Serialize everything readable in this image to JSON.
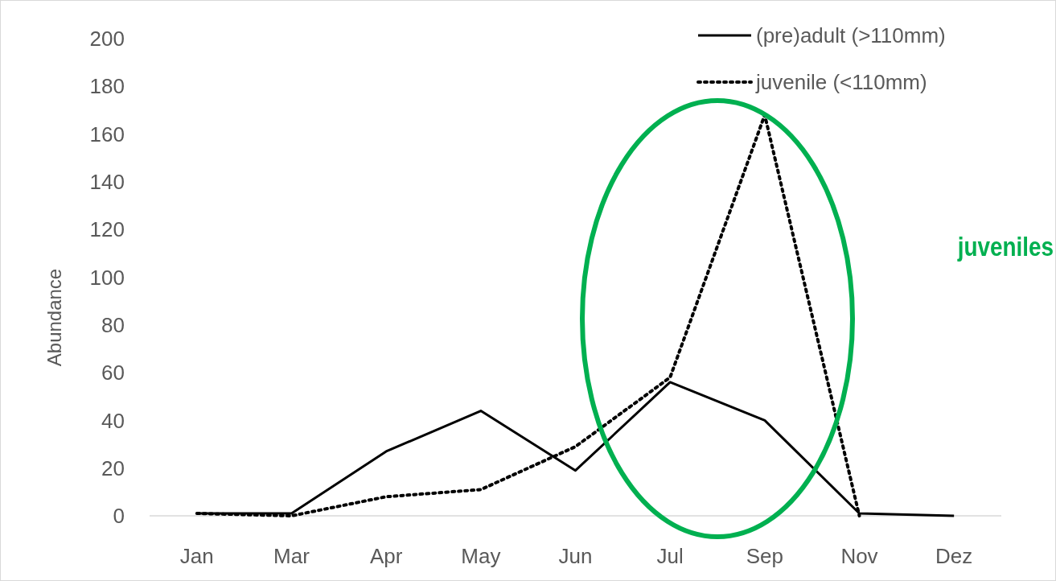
{
  "chart_data": {
    "type": "line",
    "ylabel": "Abundance",
    "categories": [
      "Jan",
      "Mar",
      "Apr",
      "May",
      "Jun",
      "Jul",
      "Sep",
      "Nov",
      "Dez"
    ],
    "series": [
      {
        "name": "(pre)adult (>110mm)",
        "color": "#000000",
        "line_style": "solid",
        "values": [
          1,
          1,
          27,
          44,
          19,
          56,
          40,
          1,
          0
        ]
      },
      {
        "name": "juvenile (<110mm)",
        "color": "#000000",
        "line_style": "dotted",
        "values": [
          1,
          0,
          8,
          11,
          29,
          58,
          168,
          0,
          null
        ]
      }
    ],
    "ylim": [
      0,
      200
    ],
    "yticks": [
      0,
      20,
      40,
      60,
      80,
      100,
      120,
      140,
      160,
      180,
      200
    ],
    "grid": false,
    "legend": "top right",
    "marker": "none",
    "annotations": [
      "juveniles"
    ]
  }
}
